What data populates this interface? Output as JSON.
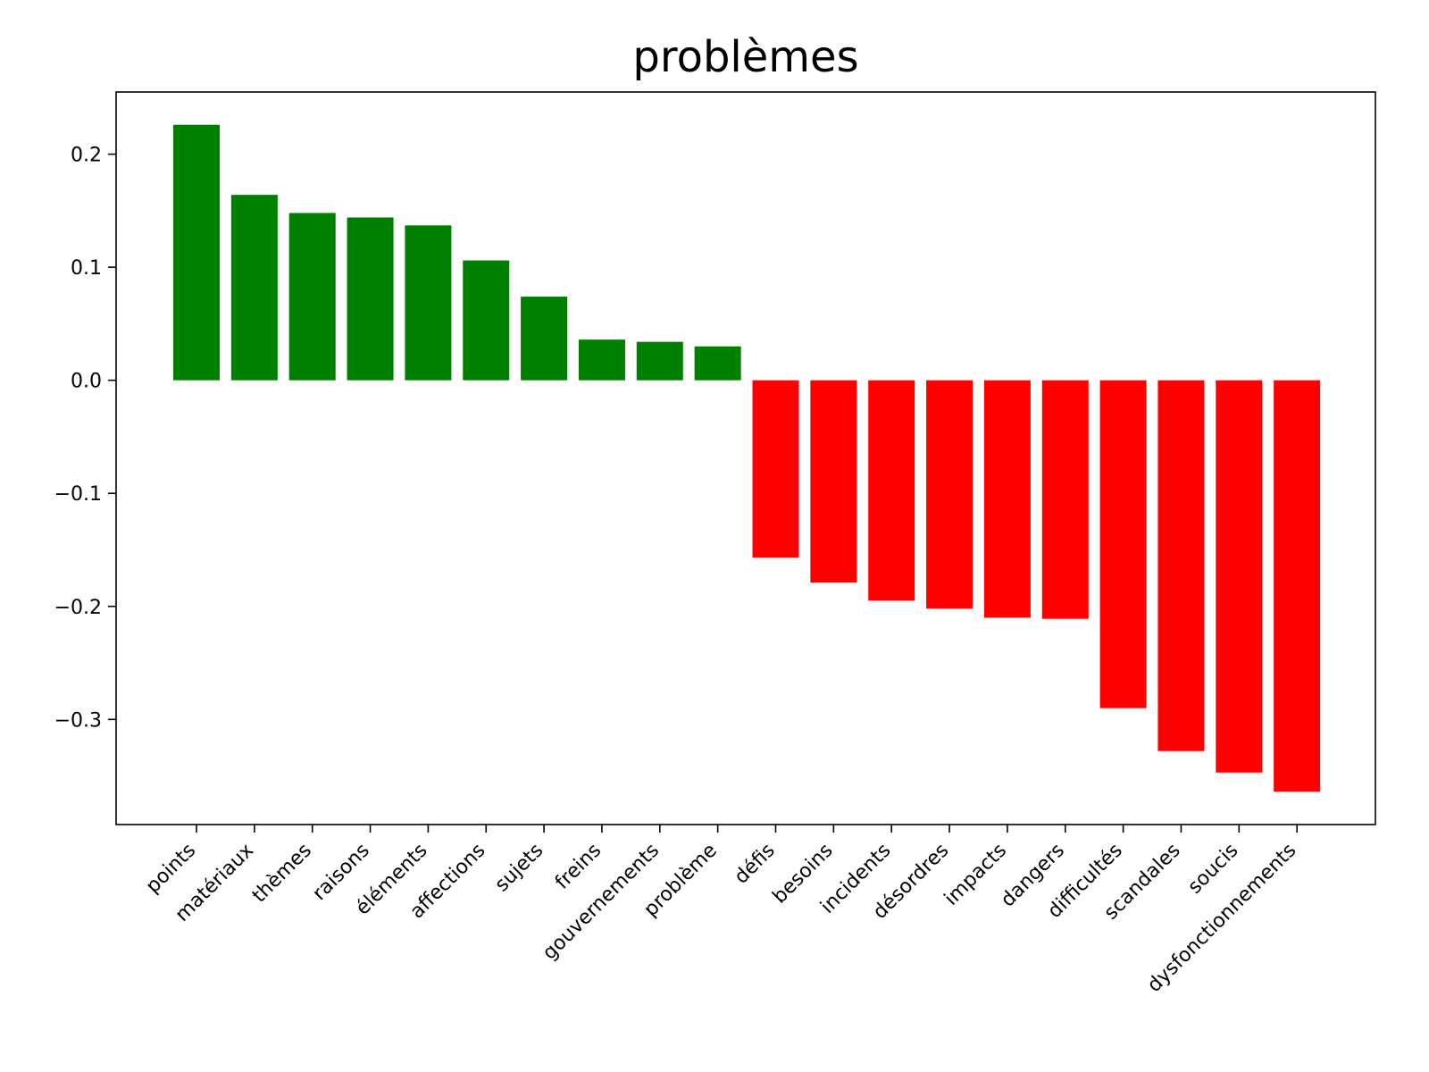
{
  "chart_data": {
    "type": "bar",
    "title": "problèmes",
    "xlabel": "",
    "ylabel": "",
    "categories": [
      "points",
      "matériaux",
      "thèmes",
      "raisons",
      "éléments",
      "affections",
      "sujets",
      "freins",
      "gouvernements",
      "problème",
      "défis",
      "besoins",
      "incidents",
      "désordres",
      "impacts",
      "dangers",
      "difficultés",
      "scandales",
      "soucis",
      "dysfonctionnements"
    ],
    "values": [
      0.226,
      0.164,
      0.148,
      0.144,
      0.137,
      0.106,
      0.074,
      0.036,
      0.034,
      0.03,
      -0.157,
      -0.179,
      -0.195,
      -0.202,
      -0.21,
      -0.211,
      -0.29,
      -0.328,
      -0.347,
      -0.364
    ],
    "ylim": [
      -0.393,
      0.255
    ],
    "yticks": [
      0.2,
      0.1,
      0.0,
      -0.1,
      -0.2,
      -0.3
    ],
    "ytick_labels": [
      "0.2",
      "0.1",
      "0.0",
      "−0.1",
      "−0.2",
      "−0.3"
    ],
    "grid": false,
    "colors": {
      "positive": "#008000",
      "negative": "#ff0000"
    }
  }
}
